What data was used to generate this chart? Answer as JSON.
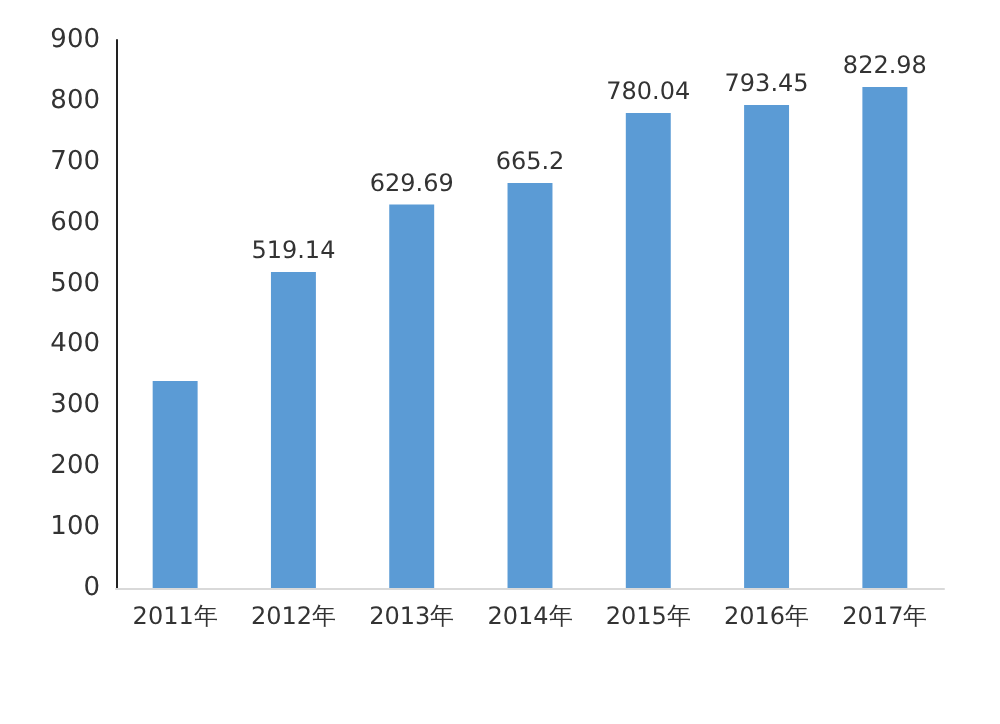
{
  "chart_data": {
    "type": "bar",
    "categories": [
      "2011年",
      "2012年",
      "2013年",
      "2014年",
      "2015年",
      "2016年",
      "2017年"
    ],
    "values": [
      340,
      519.14,
      629.69,
      665.2,
      780.04,
      793.45,
      822.98
    ],
    "value_labels": [
      null,
      "519.14",
      "629.69",
      "665.2",
      "780.04",
      "793.45",
      "822.98"
    ],
    "color": "#5b9bd5",
    "ylim": [
      0,
      900
    ],
    "yticks": [
      0,
      100,
      200,
      300,
      400,
      500,
      600,
      700,
      800,
      900
    ],
    "grid": false
  }
}
